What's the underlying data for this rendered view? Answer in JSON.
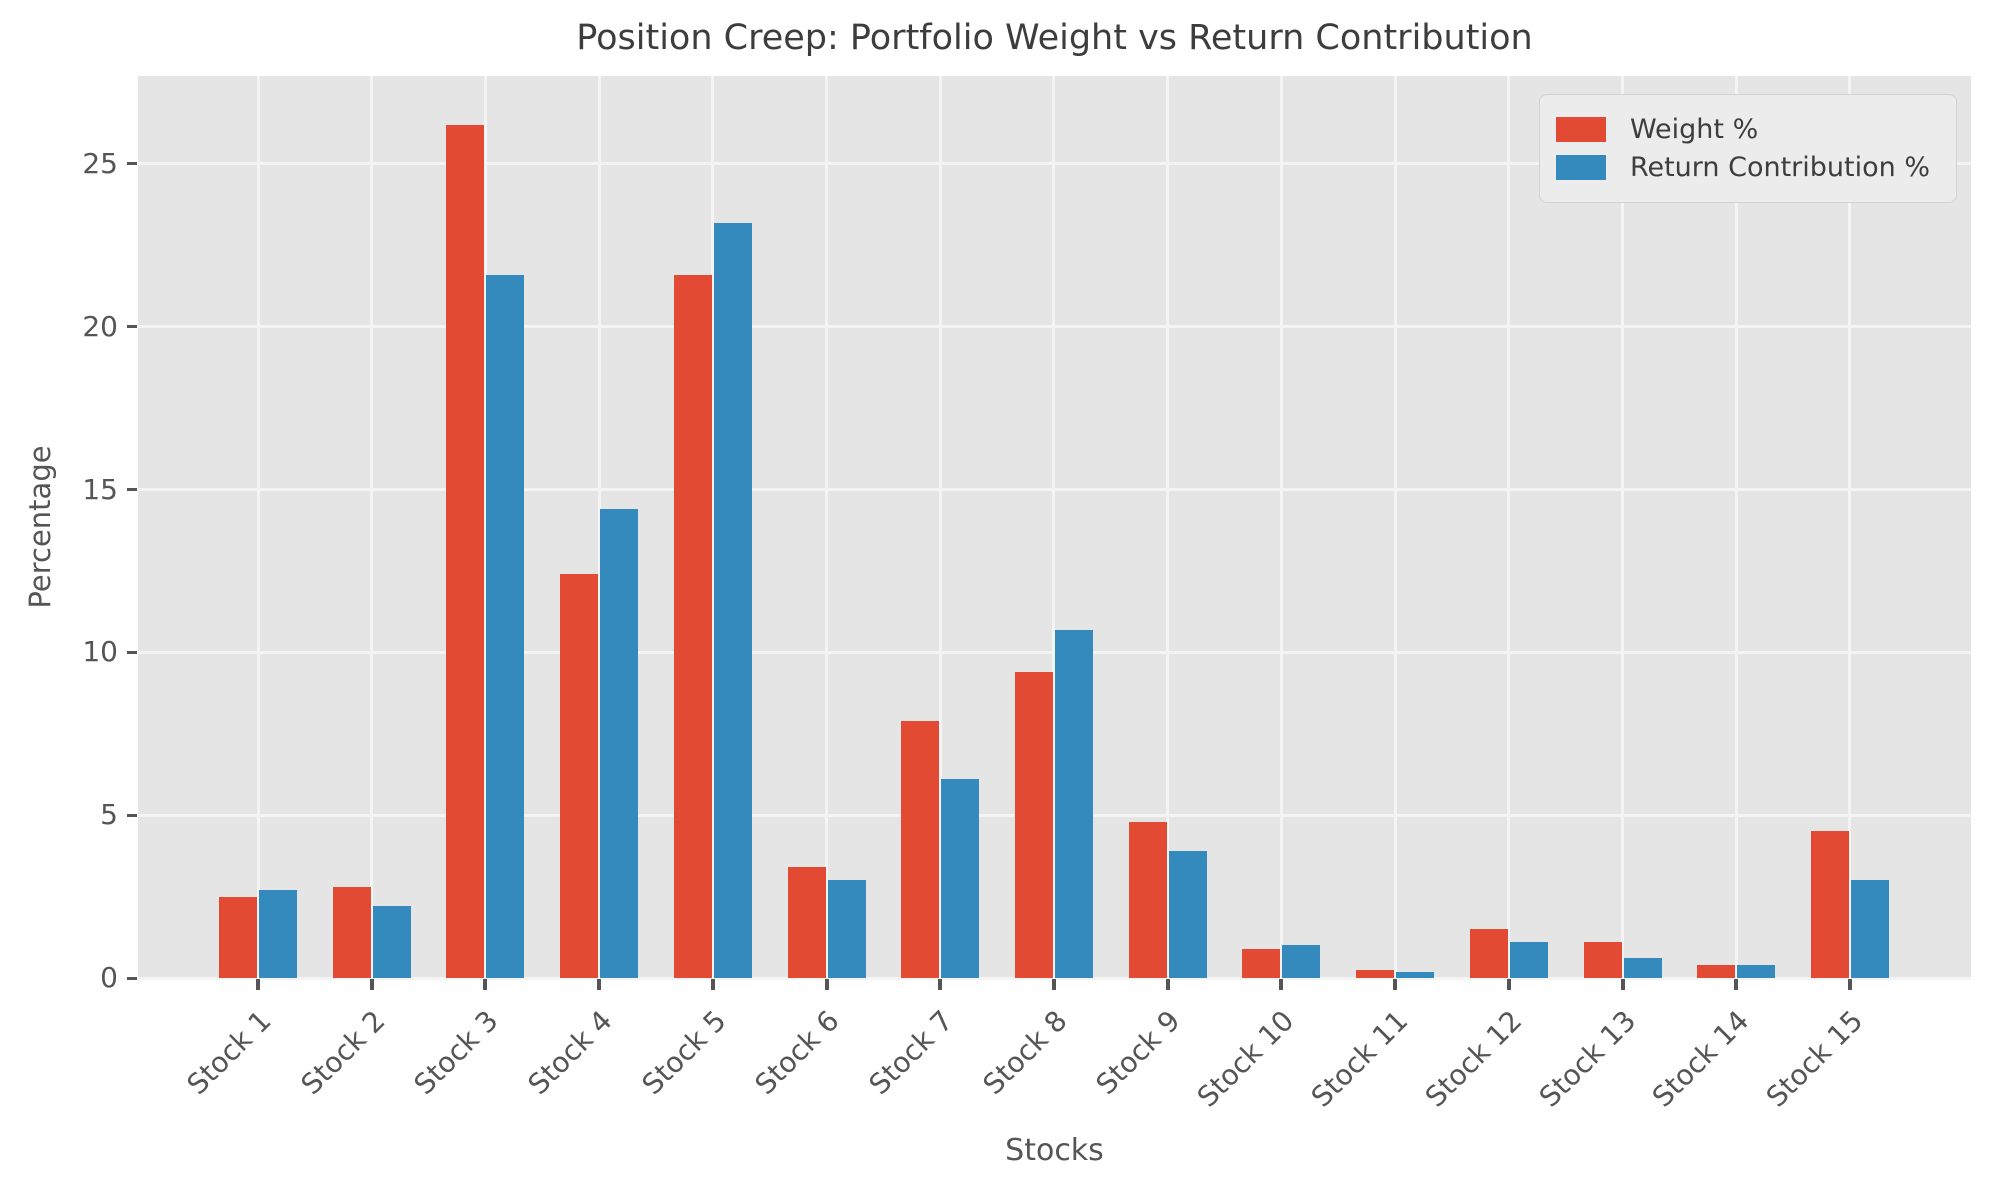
{
  "page_title": "Position Creep: Portfolio Weight vs Return Contribution",
  "chart_data": {
    "type": "bar",
    "title": "Position Creep: Portfolio Weight vs Return Contribution",
    "xlabel": "Stocks",
    "ylabel": "Percentage",
    "categories": [
      "Stock 1",
      "Stock 2",
      "Stock 3",
      "Stock 4",
      "Stock 5",
      "Stock 6",
      "Stock 7",
      "Stock 8",
      "Stock 9",
      "Stock 10",
      "Stock 11",
      "Stock 12",
      "Stock 13",
      "Stock 14",
      "Stock 15"
    ],
    "series": [
      {
        "name": "Weight %",
        "color": "#E24A33",
        "values": [
          2.5,
          2.8,
          26.2,
          12.4,
          21.6,
          3.4,
          7.9,
          9.4,
          4.8,
          0.9,
          0.25,
          1.5,
          1.1,
          0.4,
          4.5
        ]
      },
      {
        "name": "Return Contribution %",
        "color": "#348ABD",
        "values": [
          2.7,
          2.2,
          21.6,
          14.4,
          23.2,
          3.0,
          6.1,
          10.7,
          3.9,
          1.0,
          0.2,
          1.1,
          0.6,
          0.4,
          3.0
        ]
      }
    ],
    "ylim": [
      0,
      27.7
    ],
    "yticks": [
      0,
      5,
      10,
      15,
      20,
      25
    ],
    "grid": true,
    "legend_position": "upper right",
    "colors": {
      "weight": "#E24A33",
      "return_contribution": "#348ABD",
      "plot_background": "#E5E5E5",
      "gridline": "#F4F4F4",
      "tick_text": "#555555",
      "title_text": "#3D3D3D",
      "figure_background": "#FFFFFF"
    }
  }
}
